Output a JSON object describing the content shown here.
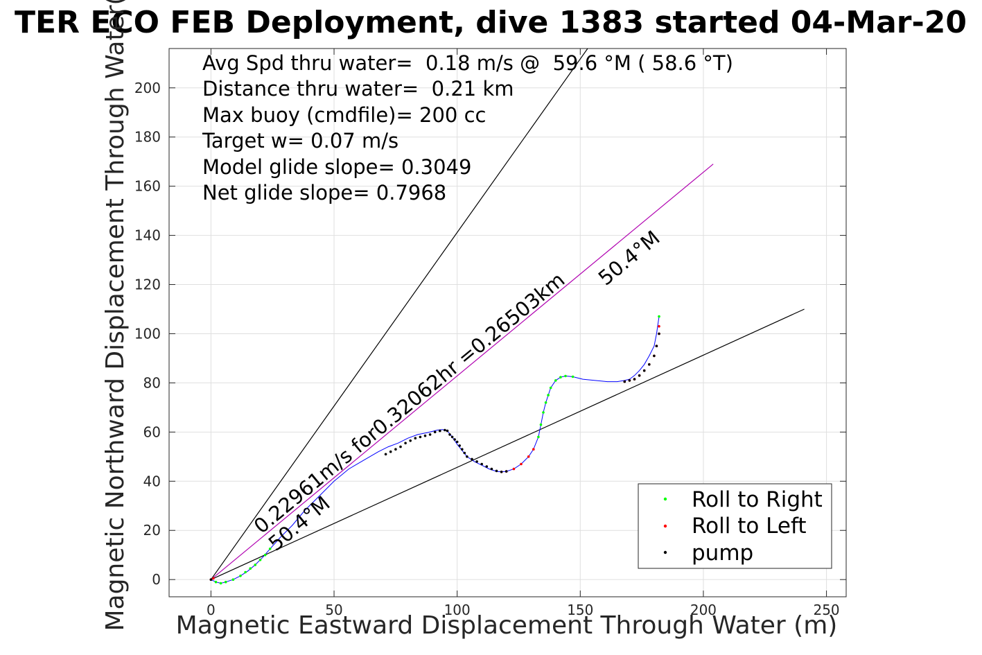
{
  "chart_data": {
    "type": "scatter",
    "title": "TER ECO FEB Deployment, dive 1383 started 04-Mar-20",
    "xlabel": "Magnetic Eastward Displacement Through Water (m)",
    "ylabel": "Magnetic Northward Displacement Through Water(",
    "xlim": [
      -17,
      258
    ],
    "ylim": [
      -7,
      216
    ],
    "xticks": [
      "0",
      "50",
      "100",
      "150",
      "200",
      "250"
    ],
    "yticks": [
      "0",
      "20",
      "40",
      "60",
      "80",
      "100",
      "120",
      "140",
      "160",
      "180",
      "200"
    ],
    "grid": true,
    "legend_position": "bottom-right",
    "annotations": [
      "Avg Spd thru water=  0.18 m/s @  59.6 °M ( 58.6 °T)",
      "Distance thru water=  0.21 km",
      "Max buoy (cmdfile)= 200 cc",
      "Target w= 0.07 m/s",
      "Model glide slope= 0.3049",
      "Net glide slope= 0.7968"
    ],
    "line_labels": {
      "heading_upper": "50.4°M",
      "heading_lower": "50.4°M",
      "speed": "0.22961m/s for0.32062hr =0.26503km"
    },
    "reference_lines": [
      {
        "name": "upper bound",
        "color": "#000000",
        "x": [
          0,
          153
        ],
        "y": [
          0,
          216
        ]
      },
      {
        "name": "heading",
        "color": "#b000b0",
        "x": [
          0,
          204
        ],
        "y": [
          0,
          169
        ]
      },
      {
        "name": "lower bound",
        "color": "#000000",
        "x": [
          0,
          241
        ],
        "y": [
          0,
          110
        ]
      }
    ],
    "track": {
      "color": "#0000ff",
      "x": [
        0,
        2,
        4,
        6,
        9,
        12,
        15,
        18,
        21,
        24,
        28,
        33,
        38,
        44,
        50,
        56,
        62,
        68,
        72,
        76,
        80,
        84,
        88,
        92,
        94,
        96,
        98,
        100,
        102,
        104,
        107,
        110,
        113,
        116,
        118,
        120,
        123,
        126,
        129,
        131,
        133,
        134,
        135,
        136,
        137,
        138,
        140,
        142,
        144,
        147,
        151,
        156,
        161,
        165,
        168,
        170,
        172,
        174,
        176,
        178,
        180,
        181,
        182
      ],
      "y": [
        0,
        -1,
        -1.5,
        -1,
        0,
        1.5,
        3.5,
        6,
        9,
        12.5,
        17,
        22,
        28,
        34,
        40,
        45,
        48.5,
        52,
        54,
        55.5,
        57.5,
        59,
        59.8,
        60.8,
        61,
        60.5,
        58,
        55,
        52.5,
        50,
        48,
        46.5,
        45,
        44,
        43.8,
        44,
        45,
        47,
        50,
        53,
        58,
        63,
        68,
        72,
        75,
        78,
        81,
        82.3,
        82.8,
        82.5,
        81.5,
        81,
        80.5,
        80.5,
        81,
        81.5,
        83,
        85,
        87.5,
        91,
        95,
        100,
        107
      ]
    },
    "series": [
      {
        "name": "Roll to Right",
        "color": "#00ff00",
        "points": [
          [
            2,
            -1
          ],
          [
            4,
            -1.5
          ],
          [
            6,
            -1
          ],
          [
            9,
            0
          ],
          [
            12,
            1.5
          ],
          [
            14,
            3
          ],
          [
            16,
            4.5
          ],
          [
            18,
            6
          ],
          [
            20,
            8
          ],
          [
            22,
            10
          ],
          [
            24,
            12.5
          ],
          [
            133,
            58
          ],
          [
            134,
            63
          ],
          [
            135,
            68
          ],
          [
            136,
            72
          ],
          [
            137,
            75
          ],
          [
            138,
            78
          ],
          [
            140,
            81
          ],
          [
            142,
            82.3
          ],
          [
            144,
            82.8
          ],
          [
            147,
            82.5
          ],
          [
            182,
            107
          ]
        ]
      },
      {
        "name": "Roll to Left",
        "color": "#ff0000",
        "points": [
          [
            0,
            0
          ],
          [
            1,
            0.5
          ],
          [
            118,
            43.8
          ],
          [
            120,
            44
          ],
          [
            123,
            45
          ],
          [
            126,
            47
          ],
          [
            129,
            50
          ],
          [
            131,
            53
          ],
          [
            168,
            80.5
          ],
          [
            170,
            81
          ],
          [
            172,
            81.5
          ],
          [
            174,
            83
          ],
          [
            176,
            85
          ],
          [
            178,
            87.5
          ],
          [
            180,
            91
          ],
          [
            181,
            95
          ],
          [
            182,
            100
          ],
          [
            182,
            103
          ]
        ]
      },
      {
        "name": "pump",
        "color": "#000000",
        "points": [
          [
            0,
            0
          ],
          [
            71,
            51
          ],
          [
            73,
            52
          ],
          [
            75,
            53
          ],
          [
            77,
            54
          ],
          [
            79,
            55.5
          ],
          [
            81,
            56.5
          ],
          [
            83,
            57.5
          ],
          [
            85,
            58
          ],
          [
            87,
            58.5
          ],
          [
            89,
            59
          ],
          [
            91,
            60
          ],
          [
            93,
            60.5
          ],
          [
            95,
            60.8
          ],
          [
            96,
            60.5
          ],
          [
            97,
            59
          ],
          [
            98,
            58
          ],
          [
            99,
            57
          ],
          [
            100,
            56
          ],
          [
            101,
            54.5
          ],
          [
            102,
            53
          ],
          [
            103,
            51.5
          ],
          [
            104,
            50
          ],
          [
            106,
            49
          ],
          [
            108,
            48
          ],
          [
            110,
            47
          ],
          [
            112,
            46
          ],
          [
            114,
            45
          ],
          [
            116,
            44.2
          ],
          [
            118,
            43.8
          ],
          [
            120,
            44
          ],
          [
            168,
            80.5
          ],
          [
            170,
            81
          ],
          [
            172,
            81.5
          ],
          [
            174,
            83
          ],
          [
            176,
            85
          ],
          [
            178,
            87.5
          ],
          [
            180,
            91
          ],
          [
            181,
            95
          ],
          [
            182,
            100
          ]
        ]
      }
    ]
  }
}
